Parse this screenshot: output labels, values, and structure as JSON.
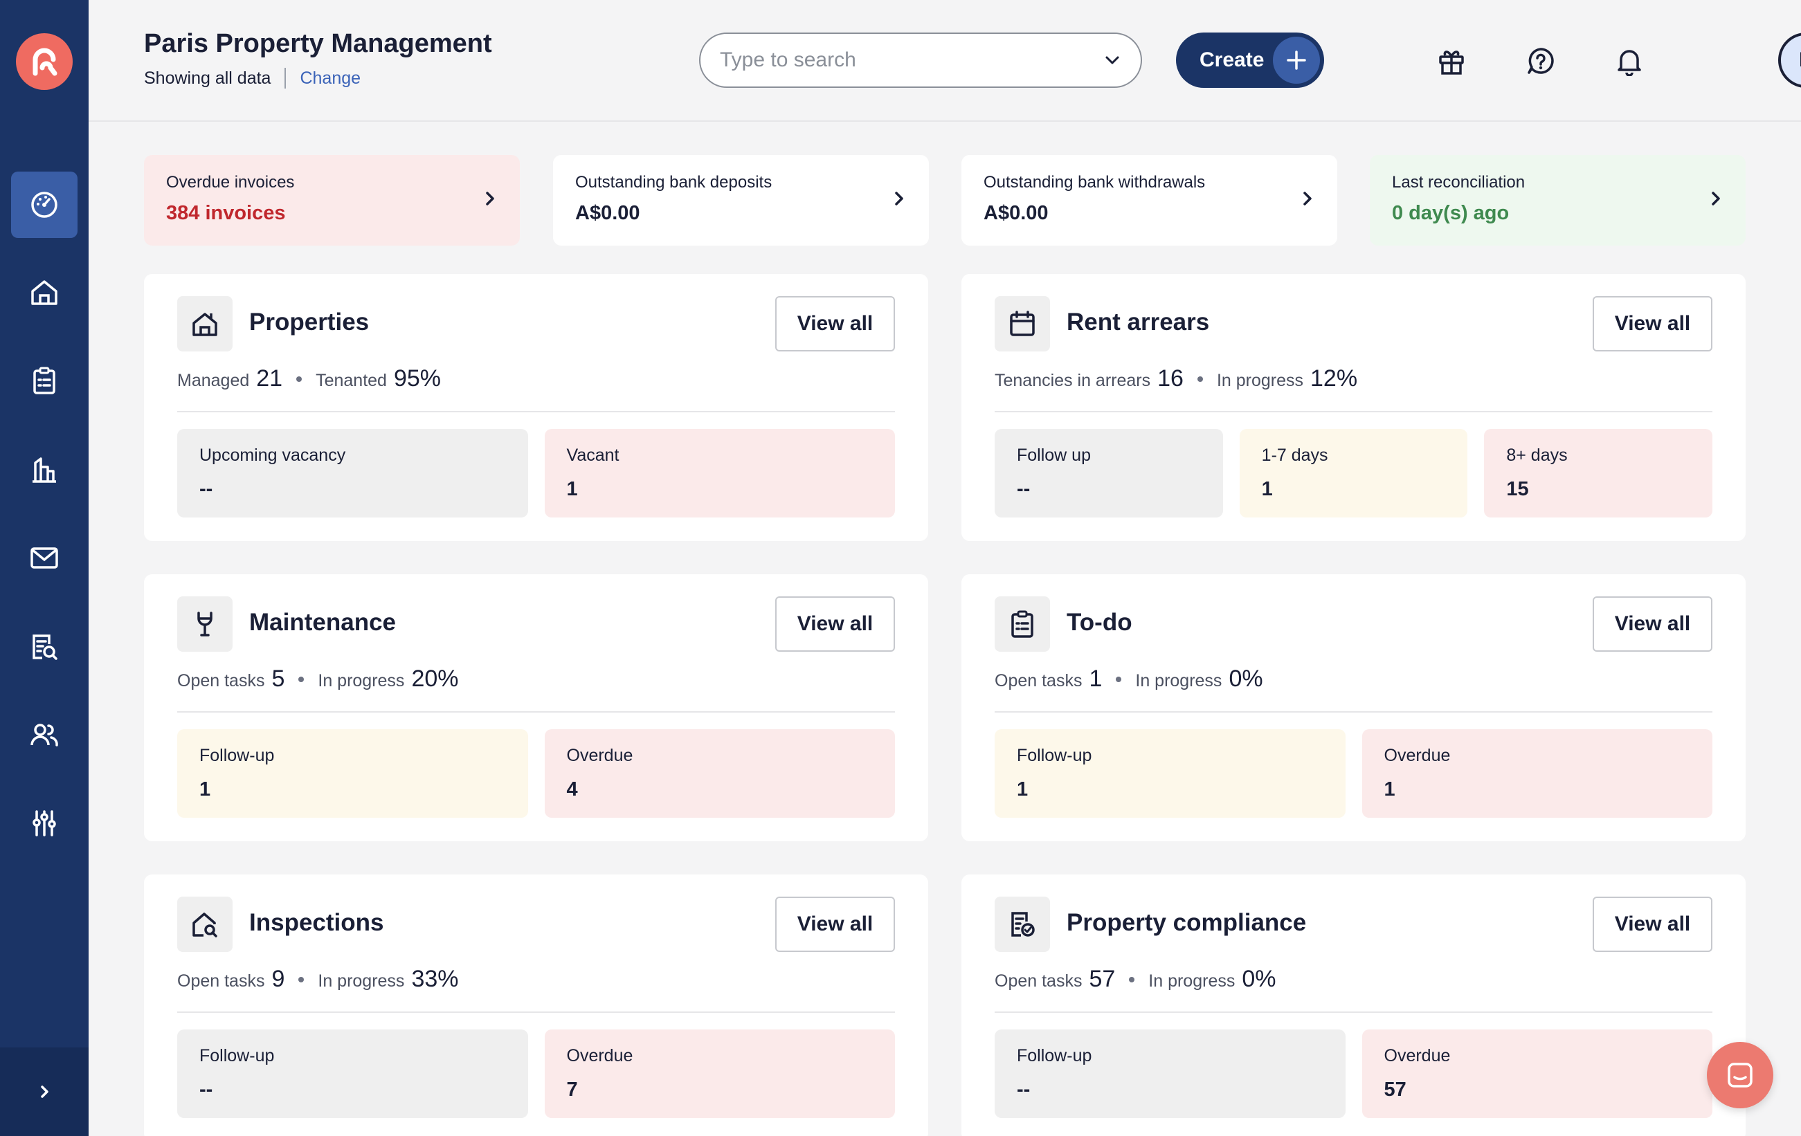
{
  "header": {
    "org_name": "Paris Property Management",
    "scope_text": "Showing all data",
    "change_link": "Change",
    "search_placeholder": "Type to search",
    "create_label": "Create",
    "avatar_initial": "P"
  },
  "sidebar": {
    "items": [
      {
        "icon": "dashboard-icon",
        "active": true
      },
      {
        "icon": "home-icon"
      },
      {
        "icon": "clipboard-icon"
      },
      {
        "icon": "building-icon"
      },
      {
        "icon": "mail-icon"
      },
      {
        "icon": "report-search-icon"
      },
      {
        "icon": "people-icon"
      },
      {
        "icon": "sliders-icon"
      }
    ]
  },
  "summary": [
    {
      "label": "Overdue invoices",
      "value": "384 invoices",
      "color": "#c0272d",
      "bg": "#fbeaea"
    },
    {
      "label": "Outstanding bank deposits",
      "value": "A$0.00",
      "color": "#1a1f36",
      "bg": "#ffffff"
    },
    {
      "label": "Outstanding bank withdrawals",
      "value": "A$0.00",
      "color": "#1a1f36",
      "bg": "#ffffff"
    },
    {
      "label": "Last reconciliation",
      "value": "0 day(s) ago",
      "color": "#3f8a4f",
      "bg": "#eef8ef"
    }
  ],
  "panels": {
    "properties": {
      "title": "Properties",
      "view_all": "View all",
      "stat1_label": "Managed",
      "stat1_value": "21",
      "stat2_label": "Tenanted",
      "stat2_value": "95%",
      "tiles": [
        {
          "label": "Upcoming vacancy",
          "value": "--"
        },
        {
          "label": "Vacant",
          "value": "1"
        }
      ]
    },
    "rent_arrears": {
      "title": "Rent arrears",
      "view_all": "View all",
      "stat1_label": "Tenancies in arrears",
      "stat1_value": "16",
      "stat2_label": "In progress",
      "stat2_value": "12%",
      "tiles": [
        {
          "label": "Follow up",
          "value": "--"
        },
        {
          "label": "1-7 days",
          "value": "1"
        },
        {
          "label": "8+ days",
          "value": "15"
        }
      ]
    },
    "maintenance": {
      "title": "Maintenance",
      "view_all": "View all",
      "stat1_label": "Open tasks",
      "stat1_value": "5",
      "stat2_label": "In progress",
      "stat2_value": "20%",
      "tiles": [
        {
          "label": "Follow-up",
          "value": "1"
        },
        {
          "label": "Overdue",
          "value": "4"
        }
      ]
    },
    "todo": {
      "title": "To-do",
      "view_all": "View all",
      "stat1_label": "Open tasks",
      "stat1_value": "1",
      "stat2_label": "In progress",
      "stat2_value": "0%",
      "tiles": [
        {
          "label": "Follow-up",
          "value": "1"
        },
        {
          "label": "Overdue",
          "value": "1"
        }
      ]
    },
    "inspections": {
      "title": "Inspections",
      "view_all": "View all",
      "stat1_label": "Open tasks",
      "stat1_value": "9",
      "stat2_label": "In progress",
      "stat2_value": "33%",
      "tiles": [
        {
          "label": "Follow-up",
          "value": "--"
        },
        {
          "label": "Overdue",
          "value": "7"
        }
      ]
    },
    "compliance": {
      "title": "Property compliance",
      "view_all": "View all",
      "stat1_label": "Open tasks",
      "stat1_value": "57",
      "stat2_label": "In progress",
      "stat2_value": "0%",
      "tiles": [
        {
          "label": "Follow-up",
          "value": "--"
        },
        {
          "label": "Overdue",
          "value": "57"
        }
      ]
    }
  }
}
